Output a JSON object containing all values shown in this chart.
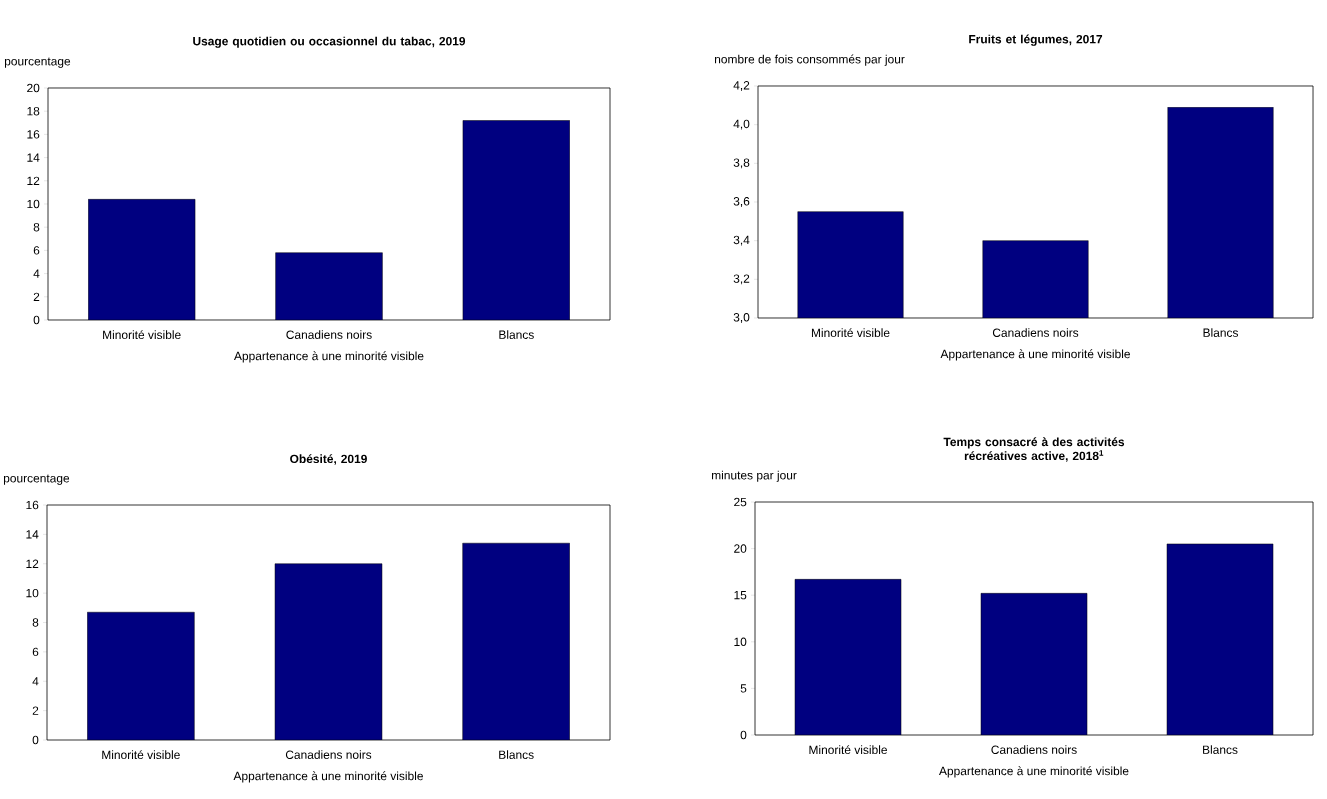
{
  "chart_data": [
    {
      "type": "bar",
      "title": "Usage quotidien ou occasionnel du tabac, 2019",
      "ylabel": "pourcentage",
      "xlabel": "Appartenance à une minorité visible",
      "categories": [
        "Minorité visible",
        "Canadiens noirs",
        "Blancs"
      ],
      "values": [
        10.4,
        5.8,
        17.2
      ],
      "color": "#000080",
      "ylim": [
        0,
        20
      ],
      "yticks": [
        0,
        2,
        4,
        6,
        8,
        10,
        12,
        14,
        16,
        18,
        20
      ]
    },
    {
      "type": "bar",
      "title": "Fruits et légumes, 2017",
      "ylabel": "nombre de fois consommés par jour",
      "xlabel": "Appartenance à une minorité visible",
      "categories": [
        "Minorité visible",
        "Canadiens noirs",
        "Blancs"
      ],
      "values": [
        3.55,
        3.4,
        4.09
      ],
      "color": "#000080",
      "ylim": [
        3.0,
        4.2
      ],
      "yticks": [
        {
          "value": 3.0,
          "label": "3,0"
        },
        {
          "value": 3.2,
          "label": "3,2"
        },
        {
          "value": 3.4,
          "label": "3,4"
        },
        {
          "value": 3.6,
          "label": "3,6"
        },
        {
          "value": 3.8,
          "label": "3,8"
        },
        {
          "value": 4.0,
          "label": "4,0"
        },
        {
          "value": 4.2,
          "label": "4,2"
        }
      ]
    },
    {
      "type": "bar",
      "title": "Obésité, 2019",
      "ylabel": "pourcentage",
      "xlabel": "Appartenance à une minorité visible",
      "categories": [
        "Minorité visible",
        "Canadiens noirs",
        "Blancs"
      ],
      "values": [
        8.7,
        12.0,
        13.4
      ],
      "color": "#000080",
      "ylim": [
        0,
        16
      ],
      "yticks": [
        0,
        2,
        4,
        6,
        8,
        10,
        12,
        14,
        16
      ]
    },
    {
      "type": "bar",
      "title": "Temps consacré à des activités récréatives active, 2018$^{1}$",
      "ylabel": "minutes par jour",
      "xlabel": "Appartenance à une minorité visible",
      "categories": [
        "Minorité visible",
        "Canadiens noirs",
        "Blancs"
      ],
      "values": [
        16.7,
        15.2,
        20.5
      ],
      "color": "#000080",
      "ylim": [
        0,
        25
      ],
      "yticks": [
        0,
        5,
        10,
        15,
        20,
        25
      ]
    }
  ]
}
